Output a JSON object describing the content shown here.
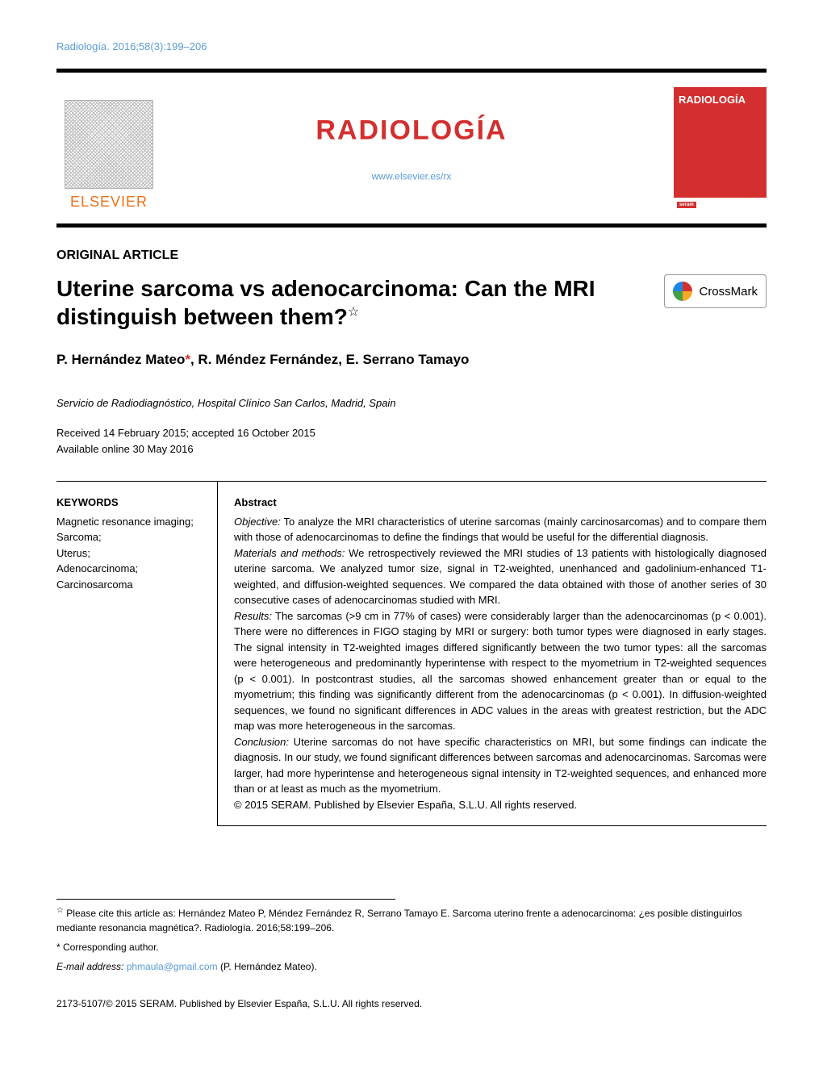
{
  "journal_ref": {
    "name": "Radiología.",
    "citation": " 2016;58(3):199–206",
    "color": "#5b9bd5"
  },
  "header": {
    "publisher_wordmark": "ELSEVIER",
    "journal_title": "RADIOLOGÍA",
    "journal_title_color": "#d32f2f",
    "journal_url": "www.elsevier.es/rx",
    "cover_label": "RADIOLOGÍA",
    "cover_seram": "seram"
  },
  "article": {
    "type": "ORIGINAL ARTICLE",
    "title_line1": "Uterine sarcoma vs adenocarcinoma: Can the MRI",
    "title_line2": "distinguish between them?",
    "star": "☆",
    "crossmark_label": "CrossMark",
    "authors": "P. Hernández Mateo",
    "authors_rest": ", R. Méndez Fernández, E. Serrano Tamayo",
    "corr_marker": "*",
    "affiliation": "Servicio de Radiodiagnóstico, Hospital Clínico San Carlos, Madrid, Spain",
    "received": "Received 14 February 2015; accepted 16 October 2015",
    "available": "Available online 30 May 2016"
  },
  "keywords": {
    "heading": "KEYWORDS",
    "items": [
      "Magnetic resonance imaging;",
      "Sarcoma;",
      "Uterus;",
      "Adenocarcinoma;",
      "Carcinosarcoma"
    ]
  },
  "abstract": {
    "heading": "Abstract",
    "objective_label": "Objective:",
    "objective": " To analyze the MRI characteristics of uterine sarcomas (mainly carcinosarcomas) and to compare them with those of adenocarcinomas to define the findings that would be useful for the differential diagnosis.",
    "methods_label": "Materials and methods:",
    "methods": " We retrospectively reviewed the MRI studies of 13 patients with histologically diagnosed uterine sarcoma. We analyzed tumor size, signal in T2-weighted, unenhanced and gadolinium-enhanced T1-weighted, and diffusion-weighted sequences. We compared the data obtained with those of another series of 30 consecutive cases of adenocarcinomas studied with MRI.",
    "results_label": "Results:",
    "results": " The sarcomas (>9 cm in 77% of cases) were considerably larger than the adenocarcinomas (p < 0.001). There were no differences in FIGO staging by MRI or surgery: both tumor types were diagnosed in early stages. The signal intensity in T2-weighted images differed significantly between the two tumor types: all the sarcomas were heterogeneous and predominantly hyperintense with respect to the myometrium in T2-weighted sequences (p < 0.001). In postcontrast studies, all the sarcomas showed enhancement greater than or equal to the myometrium; this finding was significantly different from the adenocarcinomas (p < 0.001). In diffusion-weighted sequences, we found no significant differences in ADC values in the areas with greatest restriction, but the ADC map was more heterogeneous in the sarcomas.",
    "conclusion_label": "Conclusion:",
    "conclusion": " Uterine sarcomas do not have specific characteristics on MRI, but some findings can indicate the diagnosis. In our study, we found significant differences between sarcomas and adenocarcinomas. Sarcomas were larger, had more hyperintense and heterogeneous signal intensity in T2-weighted sequences, and enhanced more than or at least as much as the myometrium.",
    "copyright": "© 2015 SERAM. Published by Elsevier España, S.L.U. All rights reserved."
  },
  "footnotes": {
    "cite_star": "☆",
    "cite": " Please cite this article as: Hernández Mateo P, Méndez Fernández R, Serrano Tamayo E. Sarcoma uterino frente a adenocarcinoma: ¿es posible distinguirlos mediante resonancia magnética?. Radiología. 2016;58:199–206.",
    "corr_marker": "*",
    "corr_text": " Corresponding author.",
    "email_label": "E-mail address: ",
    "email": "phmaula@gmail.com",
    "email_suffix": " (P. Hernández Mateo).",
    "bottom_copyright": "2173-5107/© 2015 SERAM. Published by Elsevier España, S.L.U. All rights reserved."
  },
  "style": {
    "body_width": 1020,
    "title_fontsize": 28,
    "journal_title_fontsize": 34,
    "text_fontsize": 13,
    "link_color": "#5b9bd5",
    "accent_red": "#d32f2f",
    "elsevier_orange": "#e9711c"
  }
}
